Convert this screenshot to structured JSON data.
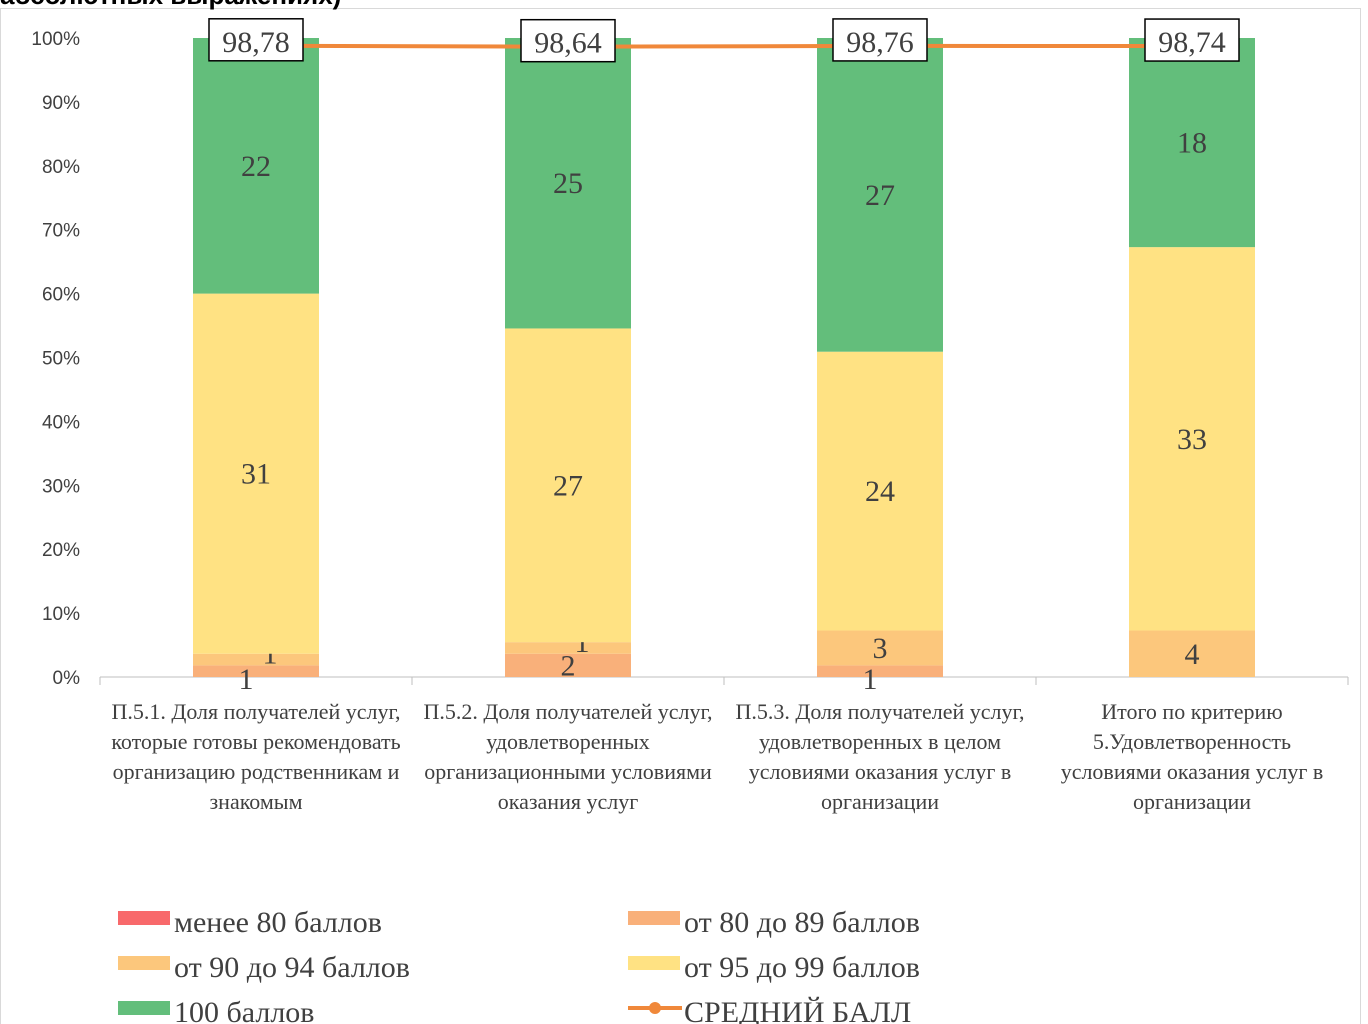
{
  "chart_data": {
    "type": "bar",
    "stack": "percent",
    "title": "абсолютных выражениях)",
    "categories": [
      "П.5.1. Доля получателей  услуг, которые готовы рекомендовать организацию родственникам и знакомым",
      "П.5.2. Доля получателей  услуг, удовлетворенных организационными условиями оказания услуг",
      "П.5.3. Доля получателей  услуг, удовлетворенных в целом условиями оказания услуг в организации",
      "Итого по критерию 5.Удовлетворенность условиями оказания услуг в организации"
    ],
    "series": [
      {
        "name": "менее 80 баллов",
        "color": "#f8696b",
        "values": [
          0,
          0,
          0,
          0
        ]
      },
      {
        "name": "от 80 до 89 баллов",
        "color": "#f9b07a",
        "values": [
          1,
          2,
          1,
          0
        ]
      },
      {
        "name": "от 90 до 94 баллов",
        "color": "#fcc77c",
        "values": [
          1,
          1,
          3,
          4
        ]
      },
      {
        "name": "от 95 до 99 баллов",
        "color": "#ffe283",
        "values": [
          31,
          27,
          24,
          33
        ]
      },
      {
        "name": "100 баллов",
        "color": "#63be7b",
        "values": [
          22,
          25,
          27,
          18
        ]
      },
      {
        "name": "СРЕДНИЙ БАЛЛ",
        "type": "line",
        "color": "#f0883a",
        "values": [
          98.78,
          98.64,
          98.76,
          98.74
        ],
        "value_labels": [
          "98,78",
          "98,64",
          "98,76",
          "98,74"
        ]
      }
    ],
    "ylim": [
      0,
      100
    ],
    "yticks": [
      {
        "value": 0,
        "label": "0%"
      },
      {
        "value": 10,
        "label": "10%"
      },
      {
        "value": 20,
        "label": "20%"
      },
      {
        "value": 30,
        "label": "30%"
      },
      {
        "value": 40,
        "label": "40%"
      },
      {
        "value": 50,
        "label": "50%"
      },
      {
        "value": 60,
        "label": "60%"
      },
      {
        "value": 70,
        "label": "70%"
      },
      {
        "value": 80,
        "label": "80%"
      },
      {
        "value": 90,
        "label": "90%"
      },
      {
        "value": 100,
        "label": "100%"
      }
    ],
    "legend": "bottom"
  }
}
